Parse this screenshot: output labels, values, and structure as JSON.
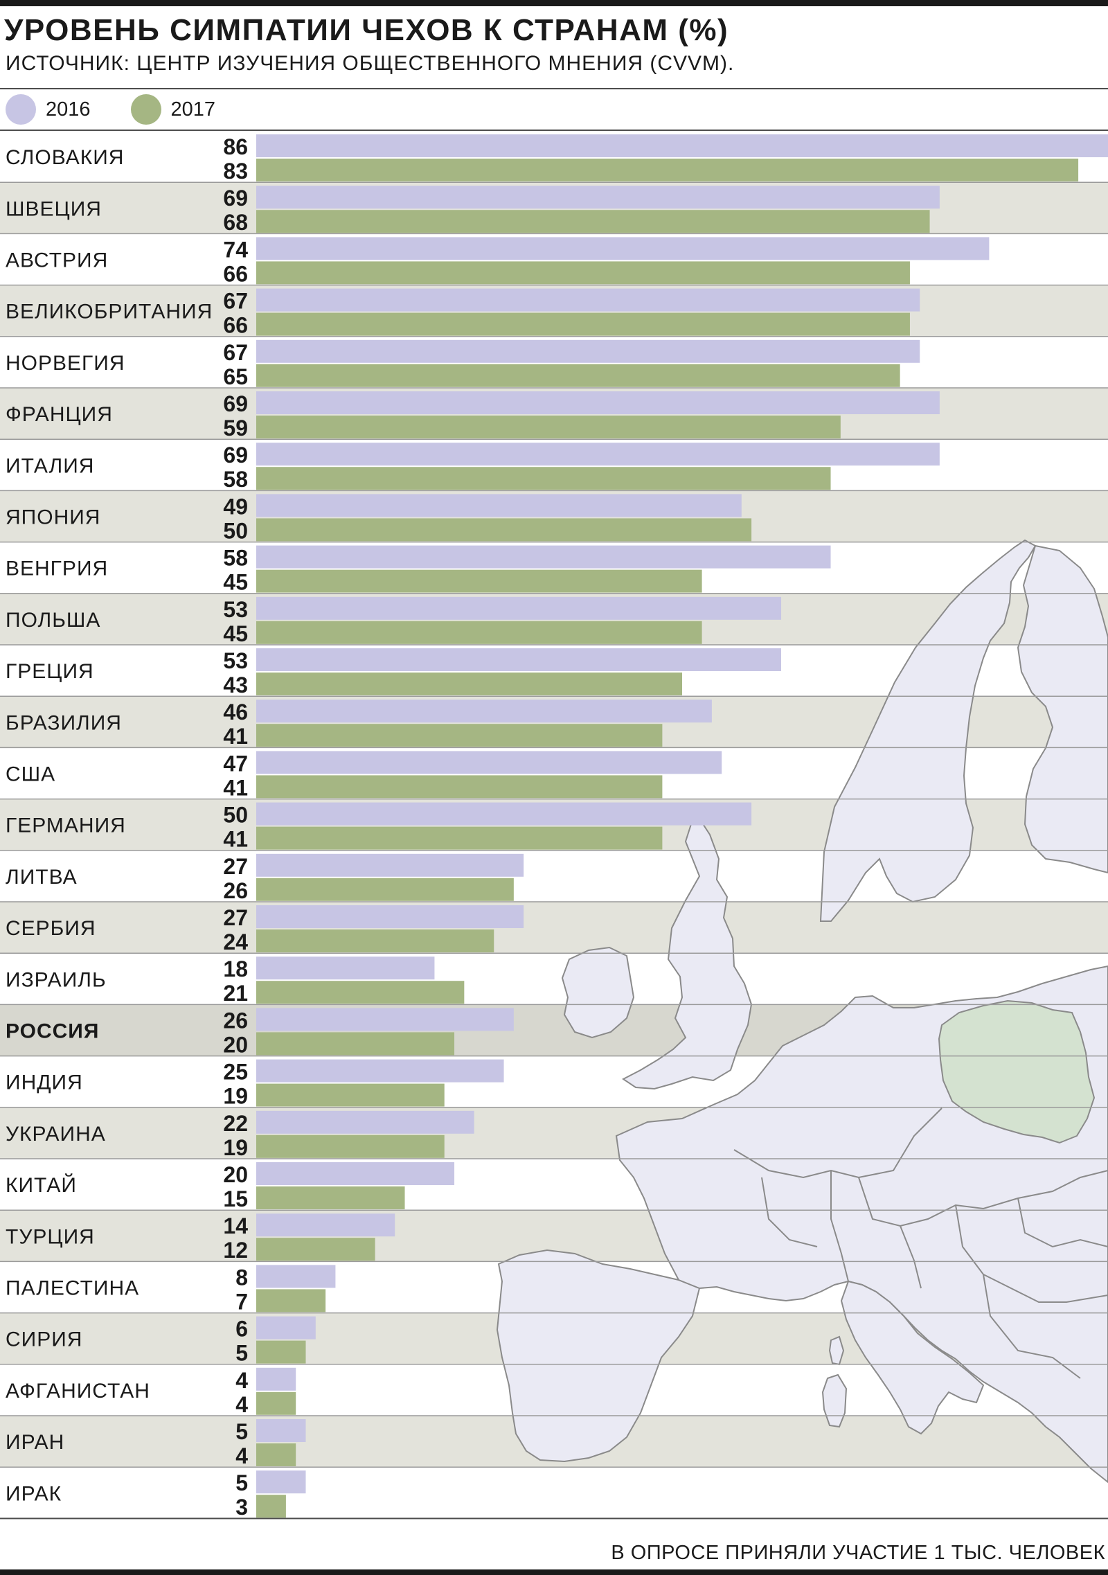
{
  "header": {
    "title": "УРОВЕНЬ СИМПАТИИ ЧЕХОВ К СТРАНАМ (%)",
    "subtitle": "ИСТОЧНИК: ЦЕНТР ИЗУЧЕНИЯ ОБЩЕСТВЕННОГО МНЕНИЯ (CVVM)."
  },
  "colors": {
    "series_2016": "#c7c5e4",
    "series_2017": "#a5b683",
    "row_alt": "#e3e3db",
    "row_highlight": "#d7d7cf"
  },
  "footnote": "В ОПРОСЕ ПРИНЯЛИ УЧАСТИЕ 1 ТЫС. ЧЕЛОВЕК",
  "chart_data": {
    "type": "bar",
    "orientation": "horizontal",
    "title": "УРОВЕНЬ СИМПАТИИ ЧЕХОВ К СТРАНАМ (%)",
    "xlim": [
      0,
      86
    ],
    "legend_position": "top-left",
    "highlighted_category": "РОССИЯ",
    "categories": [
      "СЛОВАКИЯ",
      "ШВЕЦИЯ",
      "АВСТРИЯ",
      "ВЕЛИКОБРИТАНИЯ",
      "НОРВЕГИЯ",
      "ФРАНЦИЯ",
      "ИТАЛИЯ",
      "ЯПОНИЯ",
      "ВЕНГРИЯ",
      "ПОЛЬША",
      "ГРЕЦИЯ",
      "БРАЗИЛИЯ",
      "США",
      "ГЕРМАНИЯ",
      "ЛИТВА",
      "СЕРБИЯ",
      "ИЗРАИЛЬ",
      "РОССИЯ",
      "ИНДИЯ",
      "УКРАИНА",
      "КИТАЙ",
      "ТУРЦИЯ",
      "ПАЛЕСТИНА",
      "СИРИЯ",
      "АФГАНИСТАН",
      "ИРАН",
      "ИРАК"
    ],
    "series": [
      {
        "name": "2016",
        "color": "#c7c5e4",
        "values": [
          86,
          69,
          74,
          67,
          67,
          69,
          69,
          49,
          58,
          53,
          53,
          46,
          47,
          50,
          27,
          27,
          18,
          26,
          25,
          22,
          20,
          14,
          8,
          6,
          4,
          5,
          5
        ]
      },
      {
        "name": "2017",
        "color": "#a5b683",
        "values": [
          83,
          68,
          66,
          66,
          65,
          59,
          58,
          50,
          45,
          45,
          43,
          41,
          41,
          41,
          26,
          24,
          21,
          20,
          19,
          19,
          15,
          12,
          7,
          5,
          4,
          4,
          3
        ]
      }
    ]
  }
}
